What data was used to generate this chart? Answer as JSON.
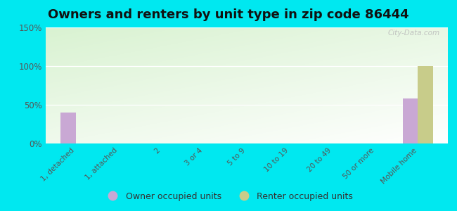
{
  "title": "Owners and renters by unit type in zip code 86444",
  "categories": [
    "1, detached",
    "1, attached",
    "2",
    "3 or 4",
    "5 to 9",
    "10 to 19",
    "20 to 49",
    "50 or more",
    "Mobile home"
  ],
  "owner_values": [
    40,
    0,
    0,
    0,
    0,
    0,
    0,
    0,
    58
  ],
  "renter_values": [
    0,
    0,
    0,
    0,
    0,
    0,
    0,
    0,
    100
  ],
  "owner_color": "#c9a8d4",
  "renter_color": "#c8cc8a",
  "background_outer": "#00e8f0",
  "ylim": [
    0,
    150
  ],
  "yticks": [
    0,
    50,
    100,
    150
  ],
  "ytick_labels": [
    "0%",
    "50%",
    "100%",
    "150%"
  ],
  "bar_width": 0.35,
  "title_fontsize": 13,
  "watermark": "City-Data.com",
  "legend_owner": "Owner occupied units",
  "legend_renter": "Renter occupied units"
}
